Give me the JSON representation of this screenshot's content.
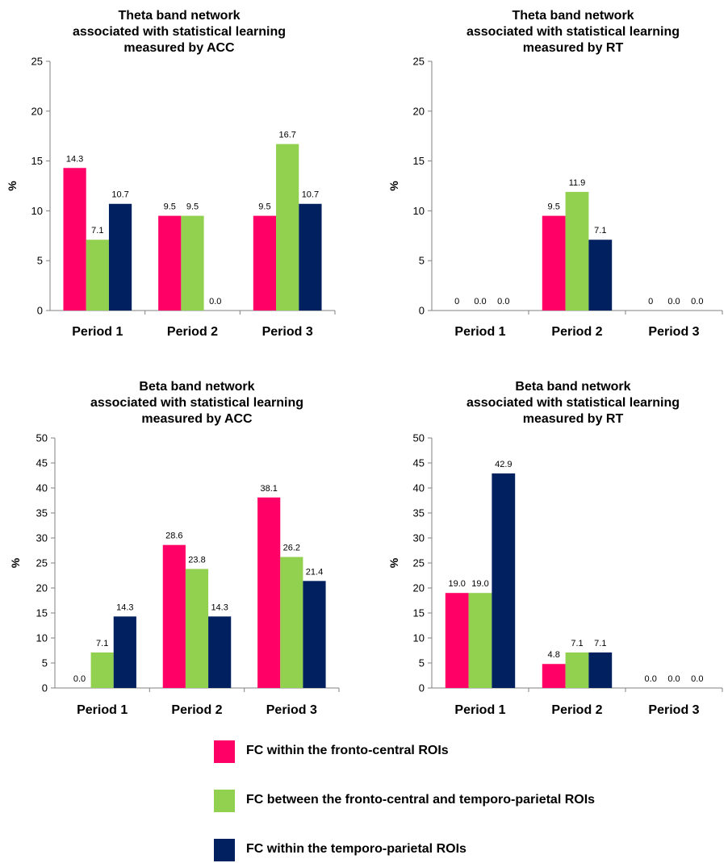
{
  "colors": {
    "fronto_central": "#ff0066",
    "between": "#92d050",
    "temporo_parietal": "#002060"
  },
  "legend": [
    {
      "label": "FC within the fronto-central ROIs",
      "color": "#ff0066"
    },
    {
      "label": "FC between the fronto-central and temporo-parietal ROIs",
      "color": "#92d050"
    },
    {
      "label": "FC within the temporo-parietal ROIs",
      "color": "#002060"
    }
  ],
  "chart_data": [
    {
      "type": "bar",
      "title_lines": [
        "Theta band network",
        "associated with statistical learning",
        "measured by ACC"
      ],
      "categories": [
        "Period 1",
        "Period 2",
        "Period 3"
      ],
      "ylabel": "%",
      "ylim": [
        0,
        25
      ],
      "yticks": [
        "0",
        "5",
        "10",
        "15",
        "20",
        "25"
      ],
      "series": [
        {
          "name": "FC within the fronto-central ROIs",
          "values": [
            14.3,
            9.5,
            9.5
          ],
          "labels": [
            "14.3",
            "9.5",
            "9.5"
          ]
        },
        {
          "name": "FC between the fronto-central and temporo-parietal ROIs",
          "values": [
            7.1,
            9.5,
            16.7
          ],
          "labels": [
            "7.1",
            "9.5",
            "16.7"
          ]
        },
        {
          "name": "FC within the temporo-parietal ROIs",
          "values": [
            10.7,
            0.0,
            10.7
          ],
          "labels": [
            "10.7",
            "0.0",
            "10.7"
          ]
        }
      ]
    },
    {
      "type": "bar",
      "title_lines": [
        "Theta band network",
        "associated with statistical learning",
        "measured by RT"
      ],
      "categories": [
        "Period 1",
        "Period 2",
        "Period 3"
      ],
      "ylabel": "%",
      "ylim": [
        0,
        25
      ],
      "yticks": [
        "0",
        "5",
        "10",
        "15",
        "20",
        "25"
      ],
      "series": [
        {
          "name": "FC within the fronto-central ROIs",
          "values": [
            0,
            9.5,
            0
          ],
          "labels": [
            "0",
            "9.5",
            "0"
          ]
        },
        {
          "name": "FC between the fronto-central and temporo-parietal ROIs",
          "values": [
            0.0,
            11.9,
            0.0
          ],
          "labels": [
            "0.0",
            "11.9",
            "0.0"
          ]
        },
        {
          "name": "FC within the temporo-parietal ROIs",
          "values": [
            0.0,
            7.1,
            0.0
          ],
          "labels": [
            "0.0",
            "7.1",
            "0.0"
          ]
        }
      ]
    },
    {
      "type": "bar",
      "title_lines": [
        "Beta band network",
        "associated with statistical learning",
        "measured by ACC"
      ],
      "categories": [
        "Period 1",
        "Period 2",
        "Period 3"
      ],
      "ylabel": "%",
      "ylim": [
        0,
        50
      ],
      "yticks": [
        "0",
        "5",
        "10",
        "15",
        "20",
        "25",
        "30",
        "35",
        "40",
        "45",
        "50"
      ],
      "series": [
        {
          "name": "FC within the fronto-central ROIs",
          "values": [
            0.0,
            28.6,
            38.1
          ],
          "labels": [
            "0.0",
            "28.6",
            "38.1"
          ]
        },
        {
          "name": "FC between the fronto-central and temporo-parietal ROIs",
          "values": [
            7.1,
            23.8,
            26.2
          ],
          "labels": [
            "7.1",
            "23.8",
            "26.2"
          ]
        },
        {
          "name": "FC within the temporo-parietal ROIs",
          "values": [
            14.3,
            14.3,
            21.4
          ],
          "labels": [
            "14.3",
            "14.3",
            "21.4"
          ]
        }
      ]
    },
    {
      "type": "bar",
      "title_lines": [
        "Beta band network",
        "associated with statistical learning",
        "measured by RT"
      ],
      "categories": [
        "Period 1",
        "Period 2",
        "Period 3"
      ],
      "ylabel": "%",
      "ylim": [
        0,
        50
      ],
      "yticks": [
        "0",
        "5",
        "10",
        "15",
        "20",
        "25",
        "30",
        "35",
        "40",
        "45",
        "50"
      ],
      "series": [
        {
          "name": "FC within the fronto-central ROIs",
          "values": [
            19.0,
            4.8,
            0.0
          ],
          "labels": [
            "19.0",
            "4.8",
            "0.0"
          ]
        },
        {
          "name": "FC between the fronto-central and temporo-parietal ROIs",
          "values": [
            19.0,
            7.1,
            0.0
          ],
          "labels": [
            "19.0",
            "7.1",
            "0.0"
          ]
        },
        {
          "name": "FC within the temporo-parietal ROIs",
          "values": [
            42.9,
            7.1,
            0.0
          ],
          "labels": [
            "42.9",
            "7.1",
            "0.0"
          ]
        }
      ]
    }
  ]
}
